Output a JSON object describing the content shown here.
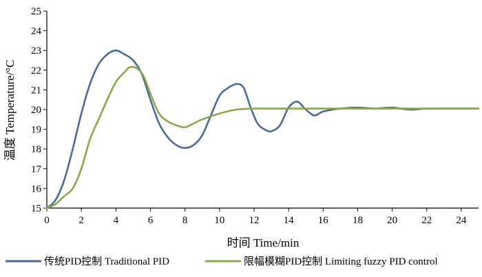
{
  "chart_data": {
    "type": "line",
    "xlabel": "时间 Time/min",
    "ylabel": "温度 Temperature/°C",
    "xlim": [
      0,
      25
    ],
    "ylim": [
      15,
      25
    ],
    "xticks": [
      0,
      2,
      4,
      6,
      8,
      10,
      12,
      14,
      16,
      18,
      20,
      22,
      24
    ],
    "yticks": [
      15,
      16,
      17,
      18,
      19,
      20,
      21,
      22,
      23,
      24,
      25
    ],
    "grid": false,
    "legend_position": "bottom",
    "series": [
      {
        "name": "传统PID控制 Traditional PID",
        "color": "#4a6a96",
        "points": [
          [
            0,
            15.0
          ],
          [
            0.5,
            15.4
          ],
          [
            1.0,
            16.4
          ],
          [
            1.5,
            18.0
          ],
          [
            2.0,
            19.8
          ],
          [
            2.5,
            21.3
          ],
          [
            3.0,
            22.3
          ],
          [
            3.5,
            22.8
          ],
          [
            4.0,
            23.0
          ],
          [
            4.5,
            22.8
          ],
          [
            5.0,
            22.5
          ],
          [
            5.5,
            21.8
          ],
          [
            6.0,
            20.5
          ],
          [
            6.5,
            19.3
          ],
          [
            7.0,
            18.6
          ],
          [
            7.5,
            18.2
          ],
          [
            8.0,
            18.05
          ],
          [
            8.5,
            18.2
          ],
          [
            9.0,
            18.7
          ],
          [
            9.5,
            19.7
          ],
          [
            10.0,
            20.7
          ],
          [
            10.5,
            21.1
          ],
          [
            11.0,
            21.3
          ],
          [
            11.4,
            21.1
          ],
          [
            11.8,
            20.1
          ],
          [
            12.2,
            19.3
          ],
          [
            12.6,
            19.0
          ],
          [
            13.0,
            18.9
          ],
          [
            13.5,
            19.2
          ],
          [
            14.0,
            20.1
          ],
          [
            14.5,
            20.4
          ],
          [
            15.0,
            20.0
          ],
          [
            15.5,
            19.7
          ],
          [
            16.0,
            19.9
          ],
          [
            17.0,
            20.05
          ],
          [
            18.0,
            20.1
          ],
          [
            19.0,
            20.05
          ],
          [
            20.0,
            20.1
          ],
          [
            21.0,
            20.0
          ],
          [
            22.0,
            20.05
          ],
          [
            23.0,
            20.05
          ],
          [
            24.0,
            20.05
          ],
          [
            25.0,
            20.05
          ]
        ]
      },
      {
        "name": "限幅模糊PID控制 Limiting fuzzy PID control",
        "color": "#8aa84a",
        "points": [
          [
            0,
            15.0
          ],
          [
            0.5,
            15.2
          ],
          [
            1.0,
            15.6
          ],
          [
            1.5,
            16.0
          ],
          [
            2.0,
            17.0
          ],
          [
            2.5,
            18.5
          ],
          [
            3.0,
            19.5
          ],
          [
            3.5,
            20.5
          ],
          [
            4.0,
            21.4
          ],
          [
            4.5,
            21.9
          ],
          [
            4.8,
            22.15
          ],
          [
            5.2,
            22.1
          ],
          [
            5.6,
            21.7
          ],
          [
            6.0,
            20.8
          ],
          [
            6.5,
            19.8
          ],
          [
            7.0,
            19.4
          ],
          [
            7.5,
            19.2
          ],
          [
            8.0,
            19.1
          ],
          [
            8.5,
            19.3
          ],
          [
            9.0,
            19.5
          ],
          [
            10.0,
            19.8
          ],
          [
            11.0,
            20.0
          ],
          [
            12.0,
            20.05
          ],
          [
            13.0,
            20.05
          ],
          [
            14.0,
            20.05
          ],
          [
            16.0,
            20.05
          ],
          [
            18.0,
            20.05
          ],
          [
            20.0,
            20.05
          ],
          [
            22.0,
            20.05
          ],
          [
            24.0,
            20.05
          ],
          [
            25.0,
            20.05
          ]
        ]
      }
    ]
  }
}
